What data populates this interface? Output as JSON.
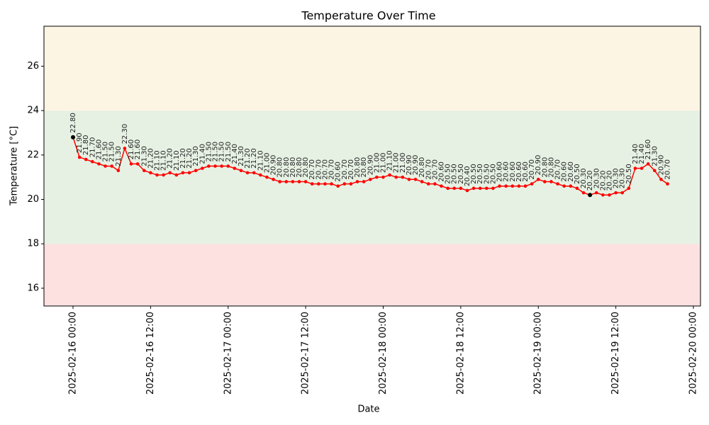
{
  "chart_data": {
    "type": "line",
    "title": "Temperature Over Time",
    "x_label": "Date",
    "y_label": "Temperature [°C]",
    "x": [
      "2025-02-16 00:00",
      "2025-02-16 01:00",
      "2025-02-16 02:00",
      "2025-02-16 03:00",
      "2025-02-16 04:00",
      "2025-02-16 05:00",
      "2025-02-16 06:00",
      "2025-02-16 07:00",
      "2025-02-16 08:00",
      "2025-02-16 09:00",
      "2025-02-16 10:00",
      "2025-02-16 11:00",
      "2025-02-16 12:00",
      "2025-02-16 13:00",
      "2025-02-16 14:00",
      "2025-02-16 15:00",
      "2025-02-16 16:00",
      "2025-02-16 17:00",
      "2025-02-16 18:00",
      "2025-02-16 19:00",
      "2025-02-16 20:00",
      "2025-02-16 21:00",
      "2025-02-16 22:00",
      "2025-02-16 23:00",
      "2025-02-17 00:00",
      "2025-02-17 01:00",
      "2025-02-17 02:00",
      "2025-02-17 03:00",
      "2025-02-17 04:00",
      "2025-02-17 05:00",
      "2025-02-17 06:00",
      "2025-02-17 07:00",
      "2025-02-17 08:00",
      "2025-02-17 09:00",
      "2025-02-17 10:00",
      "2025-02-17 11:00",
      "2025-02-17 12:00",
      "2025-02-17 13:00",
      "2025-02-17 14:00",
      "2025-02-17 15:00",
      "2025-02-17 16:00",
      "2025-02-17 17:00",
      "2025-02-17 18:00",
      "2025-02-17 19:00",
      "2025-02-17 20:00",
      "2025-02-17 21:00",
      "2025-02-17 22:00",
      "2025-02-17 23:00",
      "2025-02-18 00:00",
      "2025-02-18 01:00",
      "2025-02-18 02:00",
      "2025-02-18 03:00",
      "2025-02-18 04:00",
      "2025-02-18 05:00",
      "2025-02-18 06:00",
      "2025-02-18 07:00",
      "2025-02-18 08:00",
      "2025-02-18 09:00",
      "2025-02-18 10:00",
      "2025-02-18 11:00",
      "2025-02-18 12:00",
      "2025-02-18 13:00",
      "2025-02-18 14:00",
      "2025-02-18 15:00",
      "2025-02-18 16:00",
      "2025-02-18 17:00",
      "2025-02-18 18:00",
      "2025-02-18 19:00",
      "2025-02-18 20:00",
      "2025-02-18 21:00",
      "2025-02-18 22:00",
      "2025-02-18 23:00",
      "2025-02-19 00:00",
      "2025-02-19 01:00",
      "2025-02-19 02:00",
      "2025-02-19 03:00",
      "2025-02-19 04:00",
      "2025-02-19 05:00",
      "2025-02-19 06:00",
      "2025-02-19 07:00",
      "2025-02-19 08:00",
      "2025-02-19 09:00",
      "2025-02-19 10:00",
      "2025-02-19 11:00",
      "2025-02-19 12:00",
      "2025-02-19 13:00",
      "2025-02-19 14:00",
      "2025-02-19 15:00",
      "2025-02-19 16:00",
      "2025-02-19 17:00",
      "2025-02-19 18:00",
      "2025-02-19 19:00",
      "2025-02-19 20:00"
    ],
    "series": [
      {
        "color": "#ff0000",
        "highlight_color": "#000000",
        "values": [
          22.8,
          21.9,
          21.8,
          21.7,
          21.6,
          21.5,
          21.5,
          21.3,
          22.3,
          21.6,
          21.6,
          21.3,
          21.2,
          21.1,
          21.1,
          21.2,
          21.1,
          21.2,
          21.2,
          21.3,
          21.4,
          21.5,
          21.5,
          21.5,
          21.5,
          21.4,
          21.3,
          21.2,
          21.2,
          21.1,
          21.0,
          20.9,
          20.8,
          20.8,
          20.8,
          20.8,
          20.8,
          20.7,
          20.7,
          20.7,
          20.7,
          20.6,
          20.7,
          20.7,
          20.8,
          20.8,
          20.9,
          21.0,
          21.0,
          21.1,
          21.0,
          21.0,
          20.9,
          20.9,
          20.8,
          20.7,
          20.7,
          20.6,
          20.5,
          20.5,
          20.5,
          20.4,
          20.5,
          20.5,
          20.5,
          20.5,
          20.6,
          20.6,
          20.6,
          20.6,
          20.6,
          20.7,
          20.9,
          20.8,
          20.8,
          20.7,
          20.6,
          20.6,
          20.5,
          20.3,
          20.2,
          20.3,
          20.2,
          20.2,
          20.3,
          20.3,
          20.5,
          21.4,
          21.4,
          21.6,
          21.3,
          20.9,
          20.7
        ],
        "value_labels": [
          "22.80",
          "21.90",
          "21.80",
          "21.70",
          "21.60",
          "21.50",
          "21.50",
          "21.30",
          "22.30",
          "21.60",
          "21.60",
          "21.30",
          "21.20",
          "21.10",
          "21.10",
          "21.20",
          "21.10",
          "21.20",
          "21.20",
          "21.30",
          "21.40",
          "21.50",
          "21.50",
          "21.50",
          "21.50",
          "21.40",
          "21.30",
          "21.20",
          "21.20",
          "21.10",
          "21.00",
          "20.90",
          "20.80",
          "20.80",
          "20.80",
          "20.80",
          "20.80",
          "20.70",
          "20.70",
          "20.70",
          "20.70",
          "20.60",
          "20.70",
          "20.70",
          "20.80",
          "20.80",
          "20.90",
          "21.00",
          "21.00",
          "21.10",
          "21.00",
          "21.00",
          "20.90",
          "20.90",
          "20.80",
          "20.70",
          "20.70",
          "20.60",
          "20.50",
          "20.50",
          "20.50",
          "20.40",
          "20.50",
          "20.50",
          "20.50",
          "20.50",
          "20.60",
          "20.60",
          "20.60",
          "20.60",
          "20.60",
          "20.70",
          "20.90",
          "20.80",
          "20.80",
          "20.70",
          "20.60",
          "20.60",
          "20.50",
          "20.30",
          "20.20",
          "20.30",
          "20.20",
          "20.20",
          "20.30",
          "20.30",
          "20.50",
          "21.40",
          "21.40",
          "21.60",
          "21.30",
          "20.90",
          "20.70"
        ]
      }
    ],
    "bands": [
      {
        "range": [
          15.2,
          18
        ],
        "color": "#fde1e1"
      },
      {
        "range": [
          18,
          24
        ],
        "color": "#e6f1e3"
      },
      {
        "range": [
          24,
          27.8
        ],
        "color": "#fdf5e4"
      }
    ],
    "xlim": [
      "2025-02-15 19:30",
      "2025-02-20 01:06"
    ],
    "xticks": [
      "2025-02-16 00:00",
      "2025-02-16 12:00",
      "2025-02-17 00:00",
      "2025-02-17 12:00",
      "2025-02-18 00:00",
      "2025-02-18 12:00",
      "2025-02-19 00:00",
      "2025-02-19 12:00",
      "2025-02-20 00:00"
    ],
    "ylim": [
      15.2,
      27.8
    ],
    "yticks": [
      16,
      18,
      20,
      22,
      24,
      26
    ],
    "grid": false
  }
}
